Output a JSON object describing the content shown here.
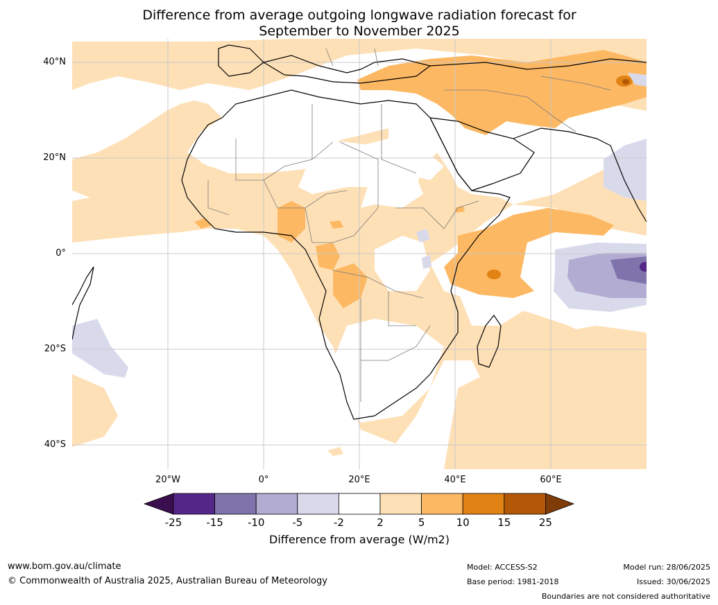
{
  "title_line1": "Difference from average outgoing longwave radiation forecast for",
  "title_line2": "September to November 2025",
  "lat_labels": [
    "40°N",
    "20°N",
    "0°",
    "20°S",
    "40°S"
  ],
  "lon_labels": [
    "20°W",
    "0°",
    "20°E",
    "40°E",
    "60°E"
  ],
  "colorbar": {
    "ticks": [
      "-25",
      "-15",
      "-10",
      "-5",
      "-2",
      "2",
      "5",
      "10",
      "15",
      "25"
    ],
    "colors": [
      "#3b0f4f",
      "#542788",
      "#8073ac",
      "#b2abd2",
      "#d8daeb",
      "#ffffff",
      "#fee0b6",
      "#fdb863",
      "#e08214",
      "#b35806",
      "#7f3b08"
    ],
    "label": "Difference from average (W/m2)"
  },
  "footer": {
    "website": "www.bom.gov.au/climate",
    "copyright": "© Commonwealth of Australia 2025, Australian Bureau of Meteorology",
    "model": "Model: ACCESS-S2",
    "base_period": "Base period: 1981-2018",
    "model_run": "Model run: 28/06/2025",
    "issued": "Issued: 30/06/2025",
    "disclaimer": "Boundaries are not considered authoritative"
  }
}
